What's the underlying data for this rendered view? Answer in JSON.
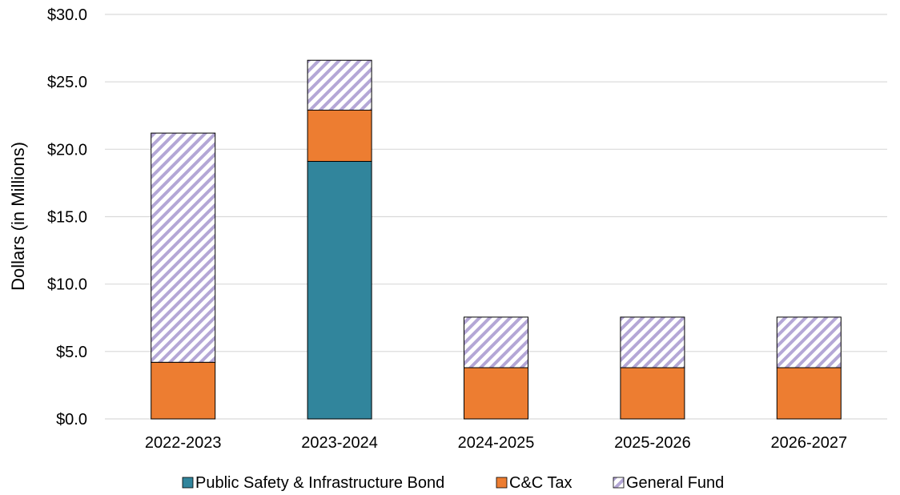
{
  "chart_data": {
    "type": "bar",
    "stacked": true,
    "title": "",
    "xlabel": "",
    "ylabel": "Dollars (in Millions)",
    "ylim": [
      0,
      30
    ],
    "yticks": [
      0,
      5,
      10,
      15,
      20,
      25,
      30
    ],
    "ytick_labels": [
      "$0.0",
      "$5.0",
      "$10.0",
      "$15.0",
      "$20.0",
      "$25.0",
      "$30.0"
    ],
    "grid": true,
    "legend_position": "bottom",
    "categories": [
      "2022-2023",
      "2023-2024",
      "2024-2025",
      "2025-2026",
      "2026-2027"
    ],
    "series": [
      {
        "name": "Public Safety & Infrastructure Bond",
        "values": [
          0,
          19.1,
          0,
          0,
          0
        ],
        "color": "#31859c",
        "pattern": "solid"
      },
      {
        "name": "C&C Tax",
        "values": [
          4.2,
          3.8,
          3.8,
          3.8,
          3.8
        ],
        "color": "#ed7d31",
        "pattern": "solid"
      },
      {
        "name": "General Fund",
        "values": [
          17.0,
          3.7,
          3.75,
          3.75,
          3.75
        ],
        "color": "#b4a7d6",
        "pattern": "diagonal-stripes"
      }
    ]
  }
}
